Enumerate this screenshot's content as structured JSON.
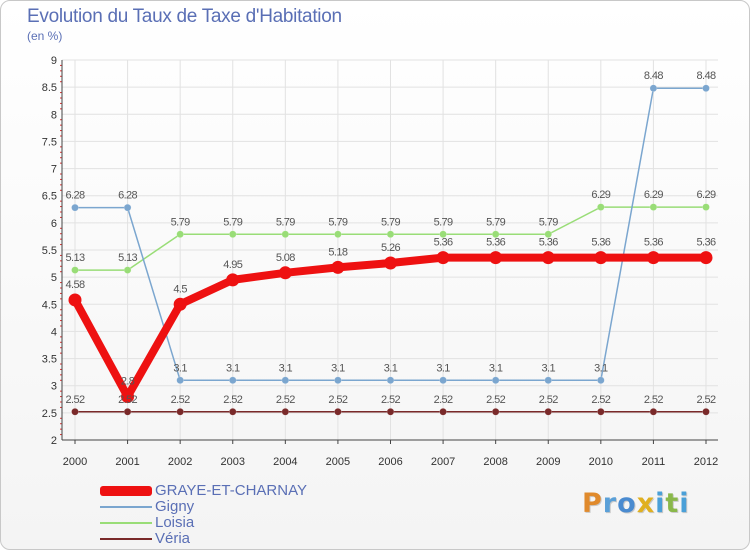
{
  "title": "Evolution du Taux de Taxe d'Habitation",
  "subtitle": "(en %)",
  "logo": {
    "text": "Proxiti",
    "letters": [
      {
        "ch": "P",
        "color": "#e08a2c"
      },
      {
        "ch": "r",
        "color": "#5aa0d8"
      },
      {
        "ch": "o",
        "color": "#4a8bd0"
      },
      {
        "ch": "x",
        "color": "#e0b020"
      },
      {
        "ch": "i",
        "color": "#4aa0d8"
      },
      {
        "ch": "t",
        "color": "#8ab84a"
      },
      {
        "ch": "i",
        "color": "#4aa0d8"
      }
    ]
  },
  "chart_data": {
    "type": "line",
    "title": "Evolution du Taux de Taxe d'Habitation",
    "ylabel": "(en %)",
    "xlabel": "",
    "categories": [
      "2000",
      "2001",
      "2002",
      "2003",
      "2004",
      "2005",
      "2006",
      "2007",
      "2008",
      "2009",
      "2010",
      "2011",
      "2012"
    ],
    "ylim": [
      2,
      9
    ],
    "yticks": [
      "2",
      "2.5",
      "3",
      "3.5",
      "4",
      "4.5",
      "5",
      "5.5",
      "6",
      "6.5",
      "7",
      "7.5",
      "8",
      "8.5",
      "9"
    ],
    "grid": true,
    "legend_position": "bottom-left",
    "series": [
      {
        "name": "Véria",
        "color": "#7a2a2a",
        "emphasis": false,
        "values": [
          2.52,
          2.52,
          2.52,
          2.52,
          2.52,
          2.52,
          2.52,
          2.52,
          2.52,
          2.52,
          2.52,
          2.52,
          2.52
        ],
        "labels": [
          "2.52",
          "2.52",
          "2.52",
          "2.52",
          "2.52",
          "2.52",
          "2.52",
          "2.52",
          "2.52",
          "2.52",
          "2.52",
          "2.52",
          "2.52"
        ]
      },
      {
        "name": "Loisia",
        "color": "#99dd77",
        "emphasis": false,
        "values": [
          5.13,
          5.13,
          5.79,
          5.79,
          5.79,
          5.79,
          5.79,
          5.79,
          5.79,
          5.79,
          6.29,
          6.29,
          6.29
        ],
        "labels": [
          "5.13",
          "5.13",
          "5.79",
          "5.79",
          "5.79",
          "5.79",
          "5.79",
          "5.79",
          "5.79",
          "5.79",
          "6.29",
          "6.29",
          "6.29"
        ]
      },
      {
        "name": "Gigny",
        "color": "#7ba6cf",
        "emphasis": false,
        "values": [
          6.28,
          6.28,
          3.1,
          3.1,
          3.1,
          3.1,
          3.1,
          3.1,
          3.1,
          3.1,
          3.1,
          8.48,
          8.48
        ],
        "labels": [
          "6.28",
          "6.28",
          "3.1",
          "3.1",
          "3.1",
          "3.1",
          "3.1",
          "3.1",
          "3.1",
          "3.1",
          "3.1",
          "8.48",
          "8.48"
        ]
      },
      {
        "name": "GRAYE-ET-CHARNAY",
        "color": "#ee1111",
        "emphasis": true,
        "values": [
          4.58,
          2.8,
          4.5,
          4.95,
          5.08,
          5.18,
          5.26,
          5.36,
          5.36,
          5.36,
          5.36,
          5.36,
          5.36
        ],
        "labels": [
          "4.58",
          "2.8",
          "4.5",
          "4.95",
          "5.08",
          "5.18",
          "5.26",
          "5.36",
          "5.36",
          "5.36",
          "5.36",
          "5.36",
          "5.36"
        ]
      }
    ],
    "legend": [
      "GRAYE-ET-CHARNAY",
      "Gigny",
      "Loisia",
      "Véria"
    ]
  }
}
